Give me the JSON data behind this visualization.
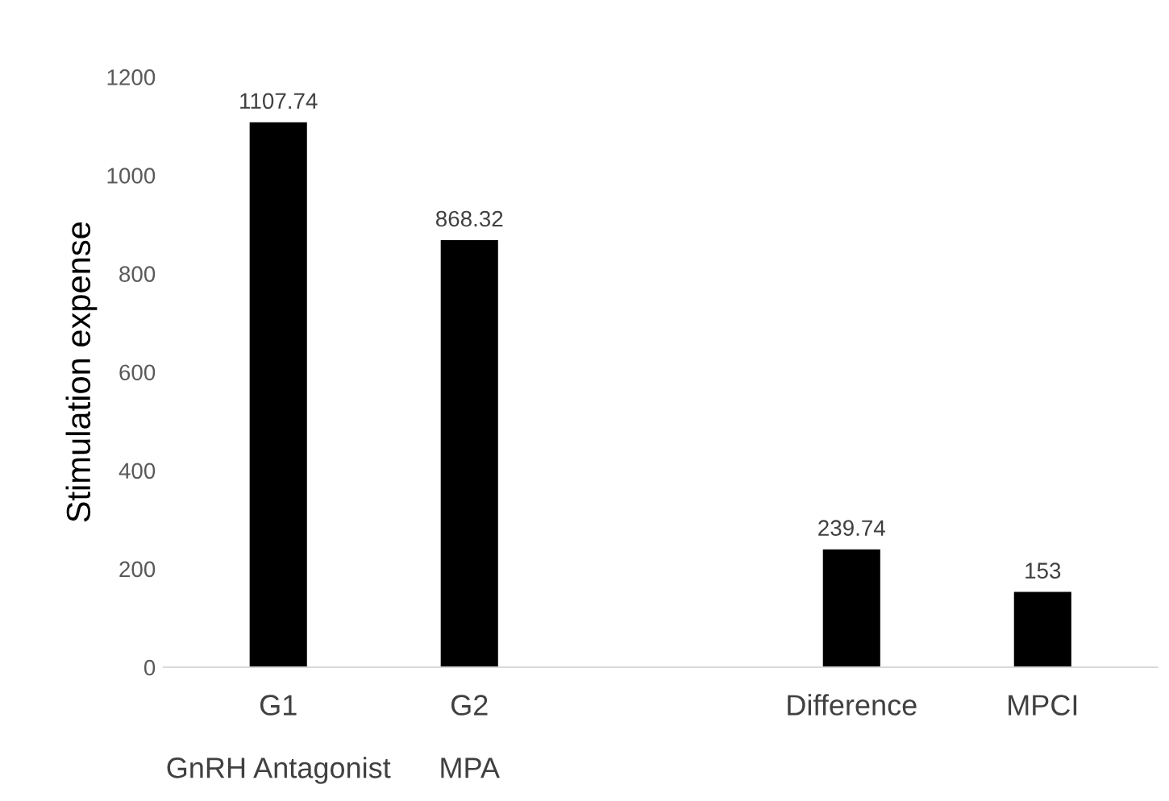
{
  "chart_data": {
    "type": "bar",
    "ylabel": "Stimulation expense",
    "categories": [
      "G1\n\nGnRH Antagonist",
      "G2\n\nMPA",
      null,
      "Difference",
      "MPCI"
    ],
    "values": [
      1107.74,
      868.32,
      null,
      239.74,
      153
    ],
    "value_labels": [
      "1107.74",
      "868.32",
      null,
      "239.74",
      "153"
    ],
    "color": "#000000",
    "ylim": [
      0,
      1200
    ],
    "yticks": [
      0,
      200,
      400,
      600,
      800,
      1000,
      1200
    ],
    "grid": false
  }
}
